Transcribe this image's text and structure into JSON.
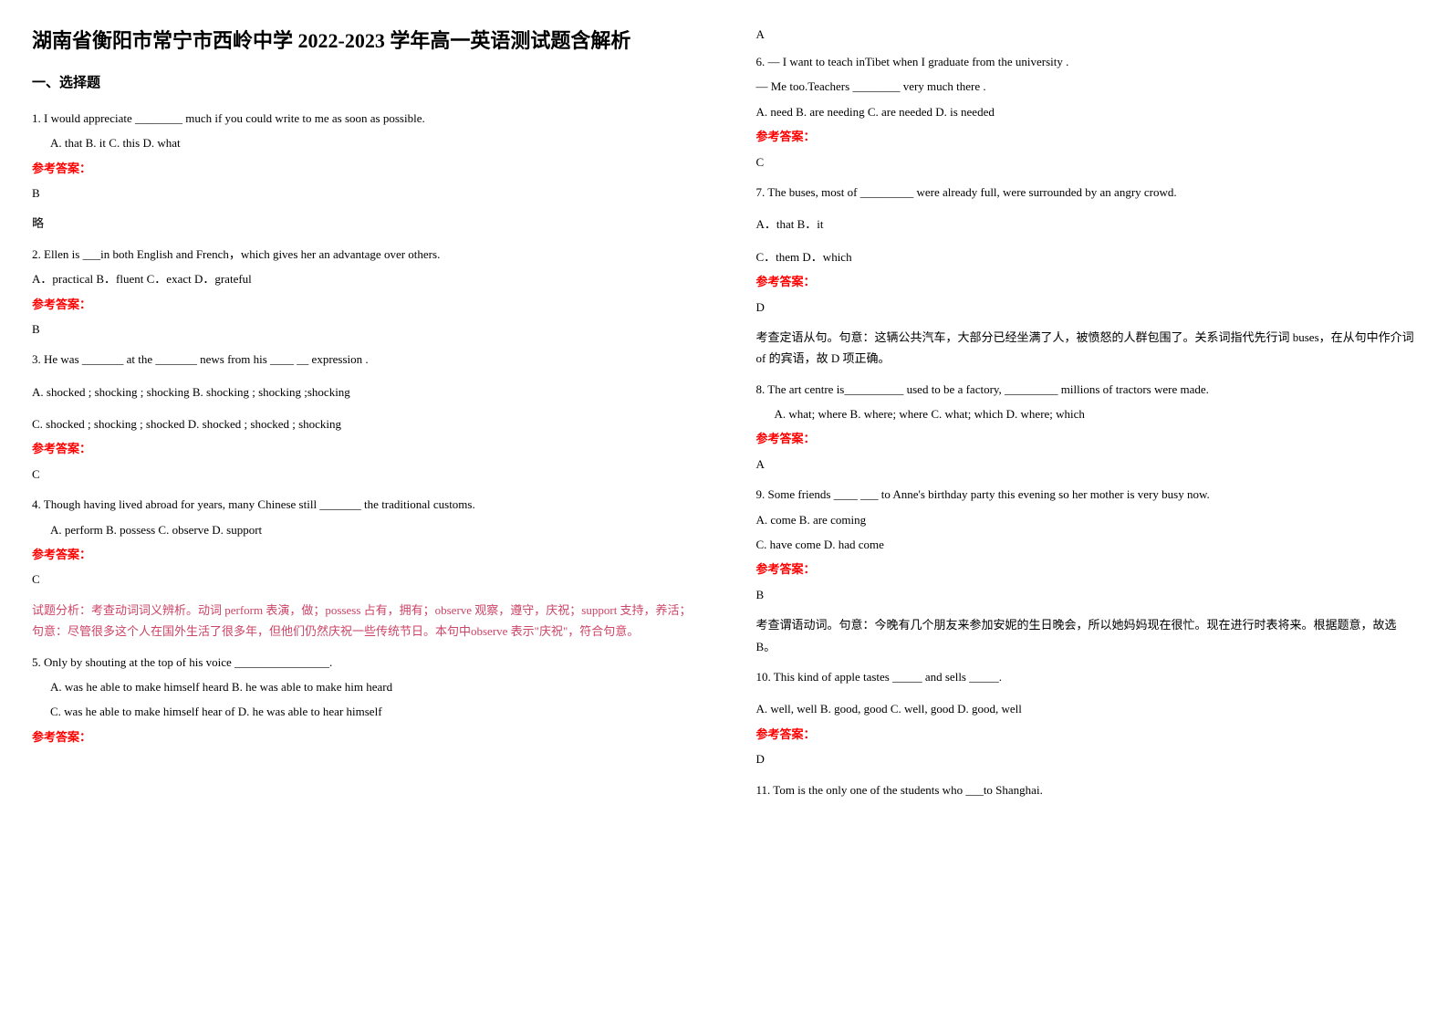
{
  "title": "湖南省衡阳市常宁市西岭中学 2022-2023 学年高一英语测试题含解析",
  "section_header": "一、选择题",
  "left": {
    "q1": {
      "text": "1. I would appreciate ________ much if you could write to me as soon as possible.",
      "options": "A. that        B. it        C. this        D. what",
      "answer_label": "参考答案：",
      "answer": "B",
      "explanation": "略"
    },
    "q2": {
      "text": "2. Ellen is ___in both English and French，which gives her an advantage over others.",
      "options": "A．practical            B．fluent     C．exact            D．grateful",
      "answer_label": "参考答案：",
      "answer": "B"
    },
    "q3": {
      "text": "3. He was _______ at the _______ news from his ____ __ expression .",
      "option_a": "A. shocked ; shocking ; shocking  B. shocking ; shocking ;shocking",
      "option_c": "C. shocked ; shocking ; shocked   D. shocked ; shocked ; shocking",
      "answer_label": "参考答案：",
      "answer": "C"
    },
    "q4": {
      "text": "4. Though having lived abroad for years, many Chinese still _______ the traditional customs.",
      "options": "A. perform            B. possess                    C. observe                    D. support",
      "answer_label": "参考答案：",
      "answer": "C",
      "explanation": "试题分析：考查动词词义辨析。动词 perform 表演，做；possess 占有，拥有；observe 观察，遵守，庆祝；support 支持，养活；句意：尽管很多这个人在国外生活了很多年，但他们仍然庆祝一些传统节日。本句中observe 表示\"庆祝\"，符合句意。"
    },
    "q5": {
      "text": "5. Only by shouting at the top of his voice ________________.",
      "option_a": "A. was he able to make himself heard       B. he was able to make him heard",
      "option_c": "C. was he able to make himself hear of      D. he was able to hear himself",
      "answer_label": "参考答案："
    }
  },
  "right": {
    "q5_answer": "A",
    "q6": {
      "text": "6. — I want to teach inTibet when I graduate from the university .",
      "text2": "— Me too.Teachers ________ very much there .",
      "options": "A. need        B. are needing     C. are needed       D. is needed",
      "answer_label": "参考答案：",
      "answer": "C"
    },
    "q7": {
      "text": "7. The buses, most of _________ were already full, were surrounded by an angry crowd.",
      "option_a": "A．that   B．it",
      "option_c": "C．them   D．which",
      "answer_label": "参考答案：",
      "answer": "D",
      "explanation": "考查定语从句。句意：这辆公共汽车，大部分已经坐满了人，被愤怒的人群包围了。关系词指代先行词 buses，在从句中作介词 of 的宾语，故 D 项正确。"
    },
    "q8": {
      "text": "8. The art centre is__________ used to be a factory, _________ millions of tractors were made.",
      "options": "A. what; where     B. where; where     C. what; which    D. where; which",
      "answer_label": "参考答案：",
      "answer": "A"
    },
    "q9": {
      "text": "9. Some friends ____ ___ to Anne's birthday party this evening so her mother is very busy now.",
      "option_a": "A. come   B. are coming",
      "option_c": "C. have come   D. had come",
      "answer_label": "参考答案：",
      "answer": "B",
      "explanation": "考查谓语动词。句意：今晚有几个朋友来参加安妮的生日晚会，所以她妈妈现在很忙。现在进行时表将来。根据题意，故选 B。"
    },
    "q10": {
      "text": "10. This kind of apple tastes _____ and sells _____.",
      "options": "A. well, well      B. good, good     C. well, good     D. good, well",
      "answer_label": "参考答案：",
      "answer": "D"
    },
    "q11": {
      "text": "11. Tom is the only one of the students who ___to Shanghai."
    }
  }
}
